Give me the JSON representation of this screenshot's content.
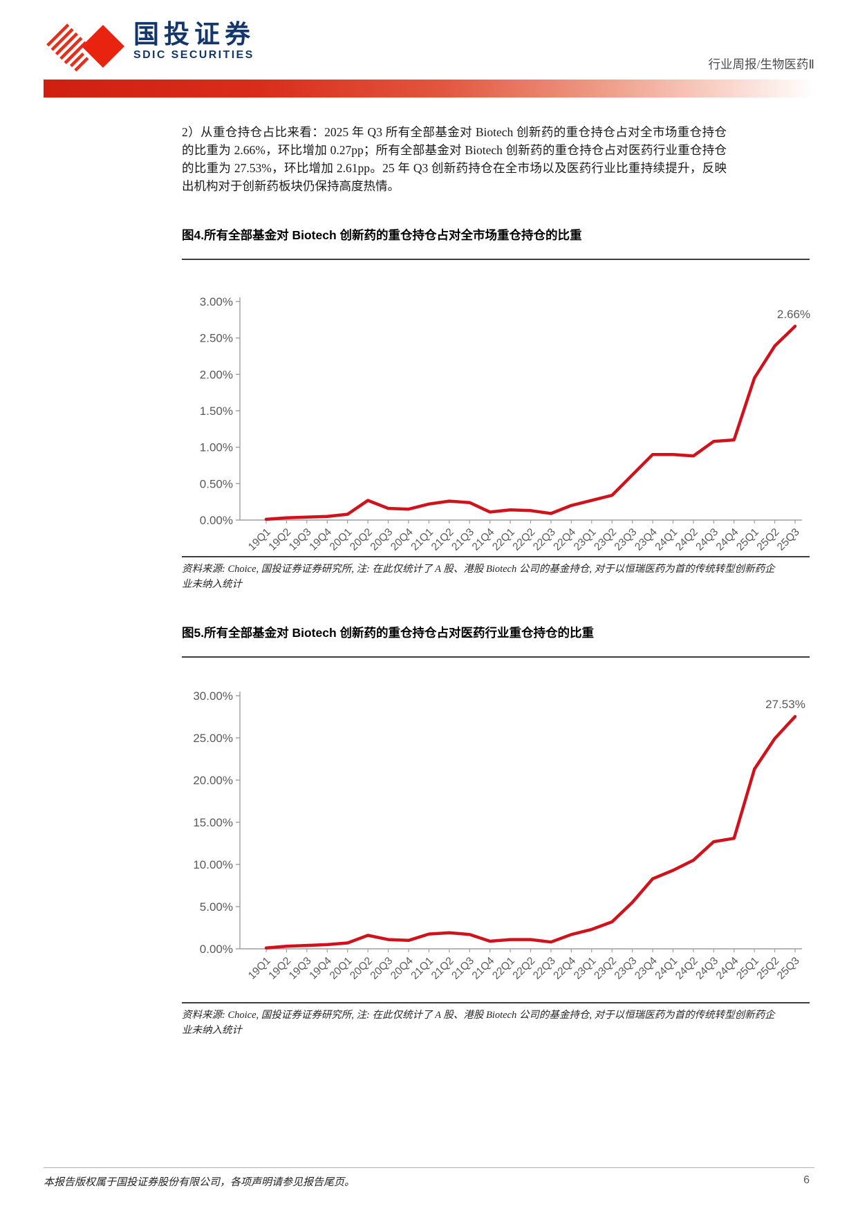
{
  "page": {
    "header": {
      "brand_cn": "国投证券",
      "brand_en": "SDIC SECURITIES",
      "report_type": "行业周报/生物医药Ⅱ"
    },
    "body_paragraph": "2）从重仓持仓占比来看：2025 年 Q3 所有全部基金对 Biotech 创新药的重仓持仓占对全市场重仓持仓的比重为 2.66%，环比增加 0.27pp；所有全部基金对 Biotech 创新药的重仓持仓占对医药行业重仓持仓的比重为 27.53%，环比增加 2.61pp。25 年 Q3 创新药持仓在全市场以及医药行业比重持续提升，反映出机构对于创新药板块仍保持高度热情。",
    "footer": {
      "copyright": "本报告版权属于国投证券股份有限公司，各项声明请参见报告尾页。",
      "page_number": "6"
    }
  },
  "figures": [
    {
      "title": "图4.所有全部基金对 Biotech 创新药的重仓持仓占对全市场重仓持仓的比重",
      "source_note": "资料来源: Choice, 国投证券证券研究所, 注: 在此仅统计了 A 股、港股 Biotech 公司的基金持仓, 对于以恒瑞医药为首的传统转型创新药企业未纳入统计"
    },
    {
      "title": "图5.所有全部基金对 Biotech 创新药的重仓持仓占对医药行业重仓持仓的比重",
      "source_note": "资料来源: Choice, 国投证券证券研究所, 注: 在此仅统计了 A 股、港股 Biotech 公司的基金持仓, 对于以恒瑞医药为首的传统转型创新药企业未纳入统计"
    }
  ],
  "chart_data": [
    {
      "type": "line",
      "title": "图4.所有全部基金对 Biotech 创新药的重仓持仓占对全市场重仓持仓的比重",
      "categories": [
        "19Q1",
        "19Q2",
        "19Q3",
        "19Q4",
        "20Q1",
        "20Q2",
        "20Q3",
        "20Q4",
        "21Q1",
        "21Q2",
        "21Q3",
        "21Q4",
        "22Q1",
        "22Q2",
        "22Q3",
        "22Q4",
        "23Q1",
        "23Q2",
        "23Q3",
        "23Q4",
        "24Q1",
        "24Q2",
        "24Q3",
        "24Q4",
        "25Q1",
        "25Q2",
        "25Q3"
      ],
      "values": [
        0.01,
        0.03,
        0.04,
        0.05,
        0.08,
        0.27,
        0.16,
        0.15,
        0.22,
        0.26,
        0.24,
        0.11,
        0.14,
        0.13,
        0.09,
        0.2,
        0.27,
        0.34,
        0.62,
        0.9,
        0.9,
        0.88,
        1.08,
        1.1,
        1.95,
        2.39,
        2.66
      ],
      "xlabel": "",
      "ylabel": "",
      "ylim": [
        0,
        3
      ],
      "yticks": [
        {
          "v": 0,
          "label": "0.00%"
        },
        {
          "v": 0.5,
          "label": "0.50%"
        },
        {
          "v": 1,
          "label": "1.00%"
        },
        {
          "v": 1.5,
          "label": "1.50%"
        },
        {
          "v": 2,
          "label": "2.00%"
        },
        {
          "v": 2.5,
          "label": "2.50%"
        },
        {
          "v": 3,
          "label": "3.00%"
        }
      ],
      "end_label": "2.66%",
      "line_color": "#CF121B",
      "grid": false,
      "legend_position": "none"
    },
    {
      "type": "line",
      "title": "图5.所有全部基金对 Biotech 创新药的重仓持仓占对医药行业重仓持仓的比重",
      "categories": [
        "19Q1",
        "19Q2",
        "19Q3",
        "19Q4",
        "20Q1",
        "20Q2",
        "20Q3",
        "20Q4",
        "21Q1",
        "21Q2",
        "21Q3",
        "21Q4",
        "22Q1",
        "22Q2",
        "22Q3",
        "22Q4",
        "23Q1",
        "23Q2",
        "23Q3",
        "23Q4",
        "24Q1",
        "24Q2",
        "24Q3",
        "24Q4",
        "25Q1",
        "25Q2",
        "25Q3"
      ],
      "values": [
        0.1,
        0.3,
        0.4,
        0.5,
        0.7,
        1.6,
        1.1,
        1.0,
        1.75,
        1.9,
        1.7,
        0.9,
        1.1,
        1.1,
        0.8,
        1.7,
        2.3,
        3.2,
        5.5,
        8.3,
        9.3,
        10.5,
        12.7,
        13.1,
        21.3,
        24.92,
        27.53
      ],
      "xlabel": "",
      "ylabel": "",
      "ylim": [
        0,
        30
      ],
      "yticks": [
        {
          "v": 0,
          "label": "0.00%"
        },
        {
          "v": 5,
          "label": "5.00%"
        },
        {
          "v": 10,
          "label": "10.00%"
        },
        {
          "v": 15,
          "label": "15.00%"
        },
        {
          "v": 20,
          "label": "20.00%"
        },
        {
          "v": 25,
          "label": "25.00%"
        },
        {
          "v": 30,
          "label": "30.00%"
        }
      ],
      "end_label": "27.53%",
      "line_color": "#CF121B",
      "grid": false,
      "legend_position": "none"
    }
  ]
}
